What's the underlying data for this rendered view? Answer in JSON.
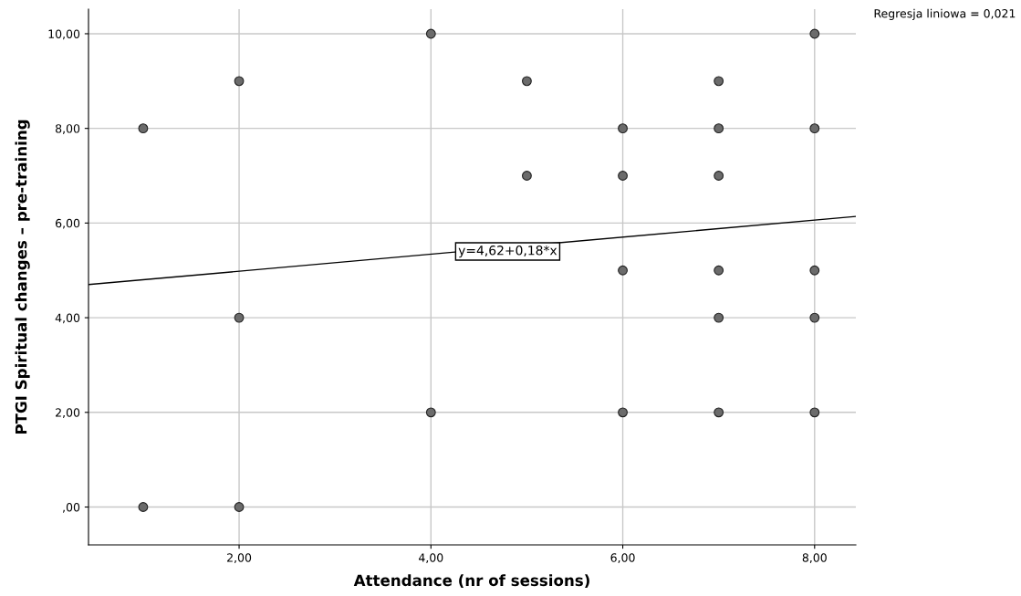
{
  "chart_data": {
    "type": "scatter",
    "xlabel": "Attendance (nr of sessions)",
    "ylabel": "PTGI Spiritual changes – pre-training",
    "xlim": [
      0.43,
      8.43
    ],
    "ylim": [
      -0.8,
      10.52
    ],
    "xticks": [
      {
        "value": 2,
        "label": "2,00"
      },
      {
        "value": 4,
        "label": "4,00"
      },
      {
        "value": 6,
        "label": "6,00"
      },
      {
        "value": 8,
        "label": "8,00"
      }
    ],
    "yticks": [
      {
        "value": 0,
        "label": ",00"
      },
      {
        "value": 2,
        "label": "2,00"
      },
      {
        "value": 4,
        "label": "4,00"
      },
      {
        "value": 6,
        "label": "6,00"
      },
      {
        "value": 8,
        "label": "8,00"
      },
      {
        "value": 10,
        "label": "10,00"
      }
    ],
    "grid": true,
    "marker": "circle",
    "series": [
      {
        "color": "#6b6b6b",
        "x": [
          1,
          1,
          2,
          2,
          2,
          4,
          4,
          5,
          5,
          6,
          6,
          6,
          6,
          7,
          7,
          7,
          7,
          7,
          7,
          8,
          8,
          8,
          8,
          8
        ],
        "values": [
          8,
          0,
          9,
          4,
          0,
          10,
          2,
          9,
          7,
          8,
          7,
          5,
          2,
          9,
          8,
          7,
          5,
          4,
          2,
          10,
          8,
          5,
          4,
          2
        ]
      },
      {
        "type": "line",
        "color": "#000000",
        "x": [
          0.43,
          8.43
        ],
        "values": [
          4.7,
          6.14
        ],
        "marker": "none"
      }
    ],
    "annotations": [
      {
        "text": "y=4,62+0,18*x",
        "x": 4.8,
        "y": 5.4
      },
      "Regresja liniowa = 0,021"
    ]
  }
}
